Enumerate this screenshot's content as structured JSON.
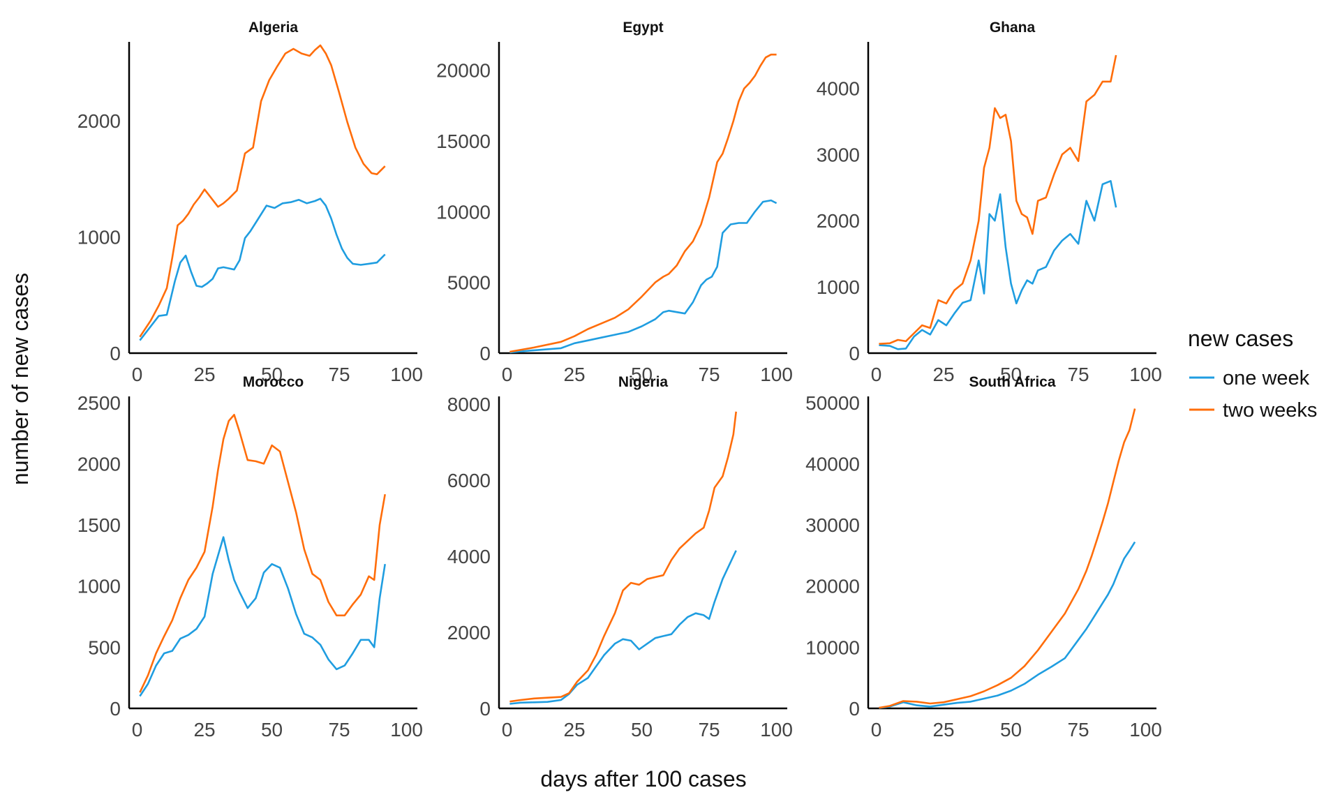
{
  "chart_data": {
    "type": "line",
    "xlabel": "days after 100 cases",
    "ylabel": "number of new cases",
    "legend": {
      "title": "new cases",
      "placement": "right",
      "entries": [
        {
          "name": "one week",
          "color": "#1f9de0"
        },
        {
          "name": "two weeks",
          "color": "#ff6d0a"
        }
      ]
    },
    "grid": false,
    "panels": [
      {
        "title": "Algeria",
        "xlim": [
          -3,
          104
        ],
        "ylim": [
          0,
          2680
        ],
        "yticks": [
          0,
          1000,
          2000
        ],
        "xticks": [
          0,
          25,
          50,
          75,
          100
        ],
        "series": [
          {
            "name": "one week",
            "x": [
              1,
              5,
              8,
              11,
              14,
              16,
              18,
              20,
              22,
              24,
              26,
              28,
              30,
              32,
              34,
              36,
              38,
              40,
              42,
              45,
              48,
              51,
              54,
              57,
              60,
              63,
              66,
              68,
              70,
              72,
              74,
              76,
              78,
              80,
              83,
              86,
              89,
              92
            ],
            "y": [
              110,
              230,
              320,
              330,
              620,
              780,
              840,
              700,
              580,
              570,
              600,
              640,
              730,
              740,
              730,
              720,
              800,
              990,
              1050,
              1160,
              1270,
              1250,
              1290,
              1300,
              1320,
              1290,
              1310,
              1330,
              1270,
              1160,
              1020,
              900,
              820,
              770,
              760,
              770,
              780,
              850
            ]
          },
          {
            "name": "two weeks",
            "x": [
              1,
              5,
              8,
              11,
              13,
              15,
              17,
              19,
              21,
              23,
              25,
              27,
              30,
              32,
              34,
              37,
              40,
              43,
              46,
              49,
              52,
              55,
              58,
              61,
              64,
              66,
              68,
              70,
              72,
              75,
              78,
              81,
              84,
              87,
              89,
              92
            ],
            "y": [
              140,
              280,
              410,
              560,
              820,
              1100,
              1140,
              1200,
              1280,
              1340,
              1410,
              1350,
              1260,
              1290,
              1330,
              1400,
              1720,
              1770,
              2170,
              2350,
              2470,
              2580,
              2620,
              2580,
              2560,
              2610,
              2650,
              2580,
              2480,
              2240,
              1990,
              1770,
              1630,
              1550,
              1540,
              1610
            ]
          }
        ]
      },
      {
        "title": "Egypt",
        "xlim": [
          -3,
          104
        ],
        "ylim": [
          0,
          22000
        ],
        "yticks": [
          0,
          5000,
          10000,
          15000,
          20000
        ],
        "xticks": [
          0,
          25,
          50,
          75,
          100
        ],
        "series": [
          {
            "name": "one week",
            "x": [
              1,
              10,
              20,
              25,
              30,
              35,
              40,
              45,
              50,
              55,
              58,
              60,
              63,
              66,
              69,
              72,
              74,
              76,
              78,
              80,
              83,
              86,
              89,
              92,
              95,
              98,
              100
            ],
            "y": [
              50,
              200,
              350,
              700,
              900,
              1100,
              1300,
              1500,
              1900,
              2400,
              2900,
              3000,
              2900,
              2800,
              3600,
              4800,
              5200,
              5400,
              6100,
              8500,
              9100,
              9200,
              9200,
              10000,
              10700,
              10800,
              10600
            ]
          },
          {
            "name": "two weeks",
            "x": [
              1,
              10,
              20,
              25,
              30,
              35,
              40,
              45,
              50,
              55,
              58,
              60,
              63,
              66,
              69,
              72,
              75,
              78,
              80,
              82,
              84,
              86,
              88,
              90,
              92,
              94,
              96,
              98,
              100
            ],
            "y": [
              100,
              400,
              800,
              1200,
              1700,
              2100,
              2500,
              3100,
              4000,
              5000,
              5400,
              5600,
              6200,
              7200,
              7900,
              9100,
              11000,
              13500,
              14100,
              15200,
              16400,
              17800,
              18700,
              19100,
              19600,
              20300,
              20900,
              21100,
              21100
            ]
          }
        ]
      },
      {
        "title": "Ghana",
        "xlim": [
          -3,
          104
        ],
        "ylim": [
          0,
          4700
        ],
        "yticks": [
          0,
          1000,
          2000,
          3000,
          4000
        ],
        "xticks": [
          0,
          25,
          50,
          75,
          100
        ],
        "series": [
          {
            "name": "one week",
            "x": [
              1,
              5,
              8,
              11,
              14,
              17,
              20,
              23,
              26,
              29,
              32,
              35,
              38,
              40,
              42,
              44,
              46,
              48,
              50,
              52,
              54,
              56,
              58,
              60,
              63,
              66,
              69,
              72,
              75,
              78,
              81,
              84,
              87,
              89
            ],
            "y": [
              120,
              110,
              60,
              70,
              250,
              350,
              280,
              500,
              420,
              600,
              760,
              800,
              1400,
              900,
              2100,
              2000,
              2400,
              1600,
              1050,
              750,
              950,
              1100,
              1050,
              1250,
              1300,
              1550,
              1700,
              1800,
              1650,
              2300,
              2000,
              2550,
              2600,
              2200
            ]
          },
          {
            "name": "two weeks",
            "x": [
              1,
              5,
              8,
              11,
              14,
              17,
              20,
              23,
              26,
              29,
              32,
              35,
              38,
              40,
              42,
              44,
              46,
              48,
              50,
              52,
              54,
              56,
              58,
              60,
              63,
              66,
              69,
              72,
              75,
              78,
              81,
              84,
              87,
              89
            ],
            "y": [
              140,
              150,
              200,
              180,
              300,
              420,
              380,
              800,
              750,
              950,
              1050,
              1400,
              2000,
              2800,
              3100,
              3700,
              3550,
              3600,
              3200,
              2300,
              2100,
              2050,
              1800,
              2300,
              2350,
              2700,
              3000,
              3100,
              2900,
              3800,
              3900,
              4100,
              4100,
              4500
            ]
          }
        ]
      },
      {
        "title": "Morocco",
        "xlim": [
          -3,
          104
        ],
        "ylim": [
          0,
          2550
        ],
        "yticks": [
          0,
          500,
          1000,
          1500,
          2000,
          2500
        ],
        "xticks": [
          0,
          25,
          50,
          75,
          100
        ],
        "series": [
          {
            "name": "one week",
            "x": [
              1,
              4,
              7,
              10,
              13,
              16,
              19,
              22,
              25,
              28,
              30,
              32,
              34,
              36,
              38,
              41,
              44,
              47,
              50,
              53,
              56,
              59,
              62,
              65,
              68,
              71,
              74,
              77,
              80,
              83,
              86,
              88,
              90,
              92
            ],
            "y": [
              100,
              200,
              350,
              450,
              470,
              570,
              600,
              650,
              750,
              1100,
              1250,
              1400,
              1210,
              1050,
              950,
              820,
              900,
              1110,
              1180,
              1150,
              980,
              770,
              610,
              580,
              520,
              400,
              320,
              350,
              450,
              560,
              560,
              500,
              900,
              1180
            ]
          },
          {
            "name": "two weeks",
            "x": [
              1,
              4,
              7,
              10,
              13,
              16,
              19,
              22,
              25,
              28,
              30,
              32,
              34,
              36,
              38,
              41,
              44,
              47,
              50,
              53,
              56,
              59,
              62,
              65,
              68,
              71,
              74,
              77,
              80,
              83,
              86,
              88,
              90,
              92
            ],
            "y": [
              130,
              270,
              450,
              590,
              720,
              900,
              1050,
              1150,
              1280,
              1650,
              1950,
              2200,
              2350,
              2400,
              2260,
              2030,
              2020,
              2000,
              2150,
              2100,
              1850,
              1600,
              1300,
              1100,
              1050,
              870,
              760,
              760,
              850,
              930,
              1080,
              1050,
              1500,
              1750
            ]
          }
        ]
      },
      {
        "title": "Nigeria",
        "xlim": [
          -3,
          104
        ],
        "ylim": [
          0,
          8200
        ],
        "yticks": [
          0,
          2000,
          4000,
          6000,
          8000
        ],
        "xticks": [
          0,
          25,
          50,
          75,
          100
        ],
        "series": [
          {
            "name": "one week",
            "x": [
              1,
              5,
              10,
              15,
              20,
              23,
              26,
              30,
              33,
              36,
              40,
              43,
              46,
              49,
              52,
              55,
              58,
              61,
              64,
              67,
              70,
              73,
              75,
              77,
              80,
              82,
              84,
              85
            ],
            "y": [
              120,
              150,
              160,
              170,
              220,
              380,
              620,
              800,
              1100,
              1400,
              1700,
              1820,
              1780,
              1550,
              1700,
              1850,
              1900,
              1950,
              2200,
              2400,
              2500,
              2450,
              2350,
              2800,
              3400,
              3700,
              4000,
              4150
            ]
          },
          {
            "name": "two weeks",
            "x": [
              1,
              5,
              10,
              15,
              20,
              23,
              26,
              30,
              33,
              36,
              40,
              43,
              46,
              49,
              52,
              55,
              58,
              61,
              64,
              67,
              70,
              73,
              75,
              77,
              80,
              82,
              84,
              85
            ],
            "y": [
              180,
              220,
              260,
              280,
              300,
              400,
              700,
              1000,
              1400,
              1900,
              2500,
              3100,
              3300,
              3250,
              3400,
              3450,
              3500,
              3900,
              4200,
              4400,
              4600,
              4750,
              5200,
              5800,
              6100,
              6600,
              7200,
              7800
            ]
          }
        ]
      },
      {
        "title": "South Africa",
        "xlim": [
          -3,
          104
        ],
        "ylim": [
          0,
          51000
        ],
        "yticks": [
          0,
          10000,
          20000,
          30000,
          40000,
          50000
        ],
        "xticks": [
          0,
          25,
          50,
          75,
          100
        ],
        "series": [
          {
            "name": "one week",
            "x": [
              1,
              5,
              10,
              15,
              20,
              25,
              30,
              35,
              40,
              45,
              50,
              55,
              60,
              65,
              70,
              75,
              78,
              80,
              82,
              84,
              86,
              88,
              90,
              92,
              94,
              96
            ],
            "y": [
              80,
              300,
              1000,
              500,
              300,
              600,
              900,
              1100,
              1600,
              2100,
              2900,
              4000,
              5500,
              6800,
              8200,
              11200,
              13000,
              14400,
              15800,
              17200,
              18600,
              20300,
              22500,
              24500,
              25800,
              27200
            ]
          },
          {
            "name": "two weeks",
            "x": [
              1,
              5,
              10,
              15,
              20,
              25,
              30,
              35,
              40,
              45,
              50,
              55,
              60,
              65,
              70,
              75,
              78,
              80,
              82,
              84,
              86,
              88,
              90,
              92,
              94,
              96
            ],
            "y": [
              100,
              400,
              1200,
              1100,
              800,
              1000,
              1500,
              2000,
              2800,
              3800,
              5000,
              6900,
              9500,
              12500,
              15500,
              19500,
              22500,
              25000,
              27700,
              30500,
              33500,
              37000,
              40500,
              43500,
              45500,
              49000
            ]
          }
        ]
      }
    ]
  }
}
